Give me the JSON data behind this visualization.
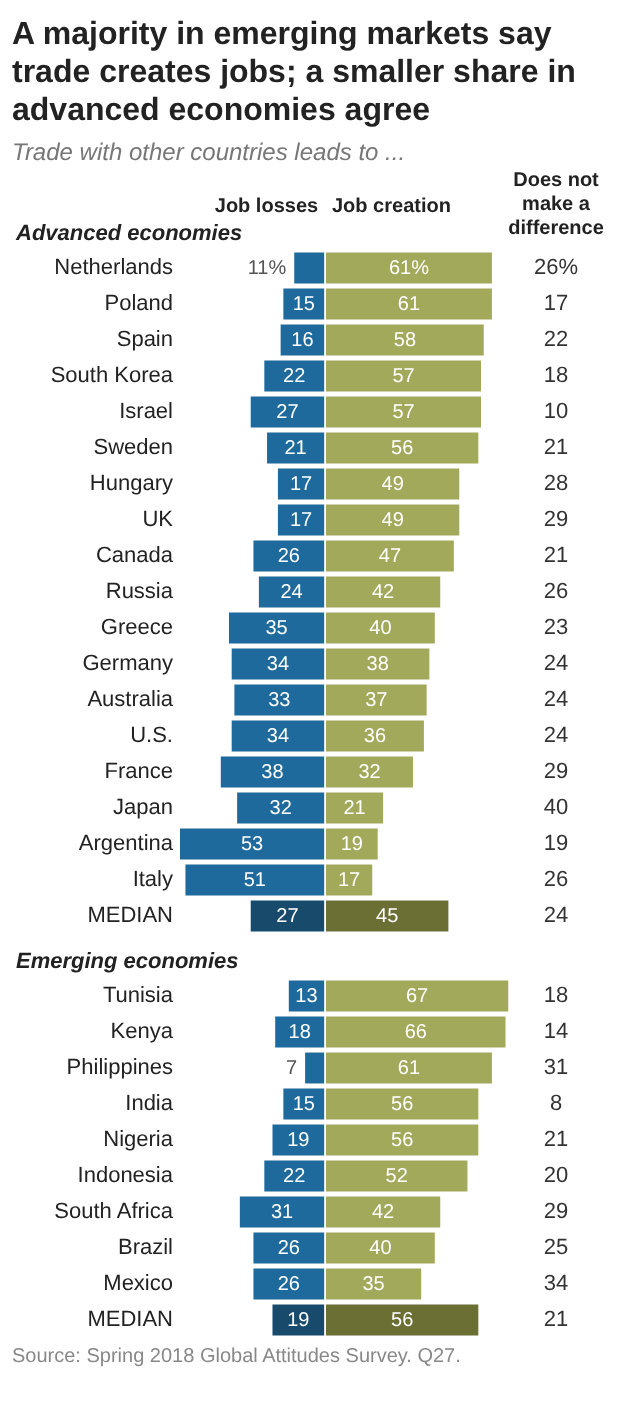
{
  "chart_data": [
    {
      "type": "bar",
      "orientation": "horizontal",
      "tick_labels": "y",
      "title": "A majority in emerging markets say trade creates jobs; a smaller share in advanced economies agree",
      "subtitle": "Trade with other countries leads to ...",
      "ylabel": "Advanced economies",
      "categories": [
        "Netherlands",
        "Poland",
        "Spain",
        "South Korea",
        "Israel",
        "Sweden",
        "Hungary",
        "UK",
        "Canada",
        "Russia",
        "Greece",
        "Germany",
        "Australia",
        "U.S.",
        "France",
        "Japan",
        "Argentina",
        "Italy",
        "MEDIAN"
      ],
      "series": [
        {
          "name": "Job losses",
          "colors": [
            "#1f6a9c",
            "#1f6a9c",
            "#1f6a9c",
            "#1f6a9c",
            "#1f6a9c",
            "#1f6a9c",
            "#1f6a9c",
            "#1f6a9c",
            "#1f6a9c",
            "#1f6a9c",
            "#1f6a9c",
            "#1f6a9c",
            "#1f6a9c",
            "#1f6a9c",
            "#1f6a9c",
            "#1f6a9c",
            "#1f6a9c",
            "#1f6a9c",
            "#184a6c"
          ],
          "values": [
            11,
            15,
            16,
            22,
            27,
            21,
            17,
            17,
            26,
            24,
            35,
            34,
            33,
            34,
            38,
            32,
            53,
            51,
            27
          ],
          "value_labels": [
            "11%",
            "15",
            "16",
            "22",
            "27",
            "21",
            "17",
            "17",
            "26",
            "24",
            "35",
            "34",
            "33",
            "34",
            "38",
            "32",
            "53",
            "51",
            "27"
          ]
        }
      ]
    },
    {
      "type": "bar",
      "orientation": "horizontal",
      "tick_labels": false,
      "categories": [
        null,
        null,
        null,
        null,
        null,
        null,
        null,
        null,
        null,
        null,
        null,
        null,
        null,
        null,
        null,
        null,
        null,
        null,
        null
      ],
      "series": [
        {
          "name": "Job creation",
          "colors": [
            "#a3a95b",
            "#a3a95b",
            "#a3a95b",
            "#a3a95b",
            "#a3a95b",
            "#a3a95b",
            "#a3a95b",
            "#a3a95b",
            "#a3a95b",
            "#a3a95b",
            "#a3a95b",
            "#a3a95b",
            "#a3a95b",
            "#a3a95b",
            "#a3a95b",
            "#a3a95b",
            "#a3a95b",
            "#a3a95b",
            "#6b6f34"
          ],
          "values": [
            61,
            61,
            58,
            57,
            57,
            56,
            49,
            49,
            47,
            42,
            40,
            38,
            37,
            36,
            32,
            21,
            19,
            17,
            45
          ],
          "value_labels": [
            "61%",
            "61",
            "58",
            "57",
            "57",
            "56",
            "49",
            "49",
            "47",
            "42",
            "40",
            "38",
            "37",
            "36",
            "32",
            "21",
            "19",
            "17",
            "45"
          ]
        }
      ]
    },
    {
      "type": "other",
      "title": "Does not make a difference",
      "values": [
        26,
        17,
        22,
        18,
        10,
        21,
        28,
        29,
        21,
        26,
        23,
        24,
        24,
        24,
        29,
        40,
        19,
        26,
        24
      ],
      "value_labels": [
        "26%",
        "17",
        "22",
        "18",
        "10",
        "21",
        "28",
        "29",
        "21",
        "26",
        "23",
        "24",
        "24",
        "24",
        "29",
        "40",
        "19",
        "26",
        "24"
      ]
    },
    {
      "type": "bar",
      "orientation": "horizontal",
      "tick_labels": "y",
      "ylabel": "Emerging economies",
      "data_labels": true,
      "categories": [
        "Tunisia",
        "Kenya",
        "Philippines",
        "India",
        "Nigeria",
        "Indonesia",
        "South Africa",
        "Brazil",
        "Mexico",
        "MEDIAN"
      ],
      "series": [
        {
          "colors": [
            "#1f6a9c",
            "#1f6a9c",
            "#1f6a9c",
            "#1f6a9c",
            "#1f6a9c",
            "#1f6a9c",
            "#1f6a9c",
            "#1f6a9c",
            "#1f6a9c",
            "#184a6c"
          ],
          "values": [
            13,
            18,
            7,
            15,
            19,
            22,
            31,
            26,
            26,
            19
          ]
        }
      ]
    },
    {
      "type": "bar",
      "orientation": "horizontal",
      "tick_labels": false,
      "data_labels": true,
      "categories": [
        null,
        null,
        null,
        null,
        null,
        null,
        null,
        null,
        null,
        null
      ],
      "series": [
        {
          "colors": [
            "#a3a95b",
            "#a3a95b",
            "#a3a95b",
            "#a3a95b",
            "#a3a95b",
            "#a3a95b",
            "#a3a95b",
            "#a3a95b",
            "#a3a95b",
            "#6b6f34"
          ],
          "values": [
            67,
            66,
            61,
            56,
            56,
            52,
            42,
            40,
            35,
            56
          ]
        }
      ]
    },
    {
      "type": "other",
      "data_labels": true,
      "annotations": [
        "Source: Spring 2018 Global Attitudes Survey. Q27."
      ],
      "values": [
        18,
        14,
        31,
        8,
        21,
        20,
        29,
        25,
        34,
        21
      ]
    }
  ]
}
